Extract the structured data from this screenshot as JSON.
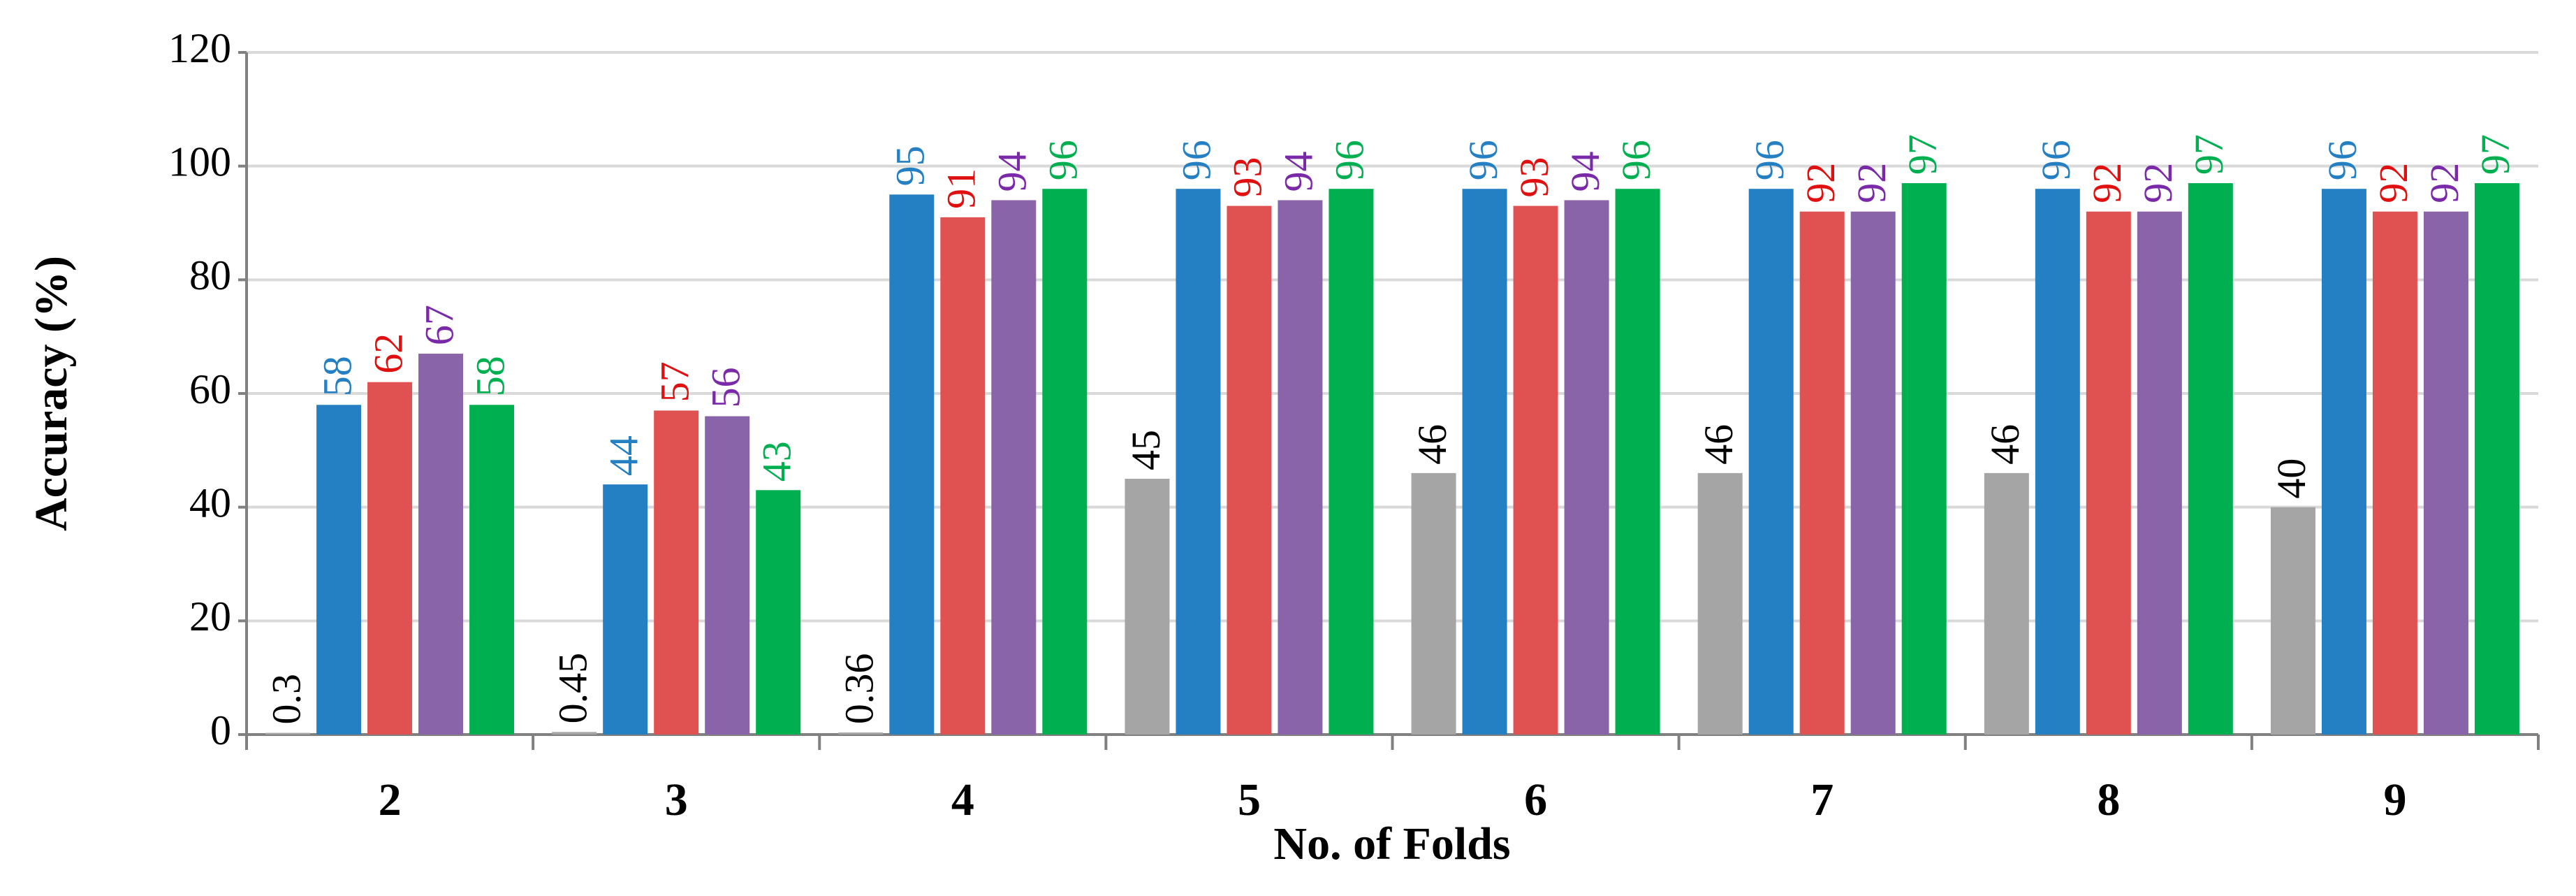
{
  "chart_data": {
    "type": "bar",
    "x_label": "No. of Folds",
    "y_label": "Accuracy (%)",
    "categories": [
      "2",
      "3",
      "4",
      "5",
      "6",
      "7",
      "8",
      "9"
    ],
    "series": [
      {
        "color": "#a5a5a5",
        "label_color": "#000000",
        "values": [
          0.3,
          0.45,
          0.36,
          45,
          46,
          46,
          46,
          40
        ]
      },
      {
        "color": "#2580c3",
        "label_color": "#2580c3",
        "values": [
          58,
          44,
          95,
          96,
          96,
          96,
          96,
          96
        ]
      },
      {
        "color": "#e05252",
        "label_color": "#e01010",
        "values": [
          62,
          57,
          91,
          93,
          93,
          92,
          92,
          92
        ]
      },
      {
        "color": "#8a64a8",
        "label_color": "#7a2aa8",
        "values": [
          67,
          56,
          94,
          94,
          94,
          92,
          92,
          92
        ]
      },
      {
        "color": "#00b050",
        "label_color": "#00b050",
        "values": [
          58,
          43,
          96,
          96,
          96,
          97,
          97,
          97
        ]
      }
    ],
    "ylim": [
      0,
      120
    ],
    "yticks": [
      0,
      20,
      40,
      60,
      80,
      100,
      120
    ],
    "grid": true
  }
}
